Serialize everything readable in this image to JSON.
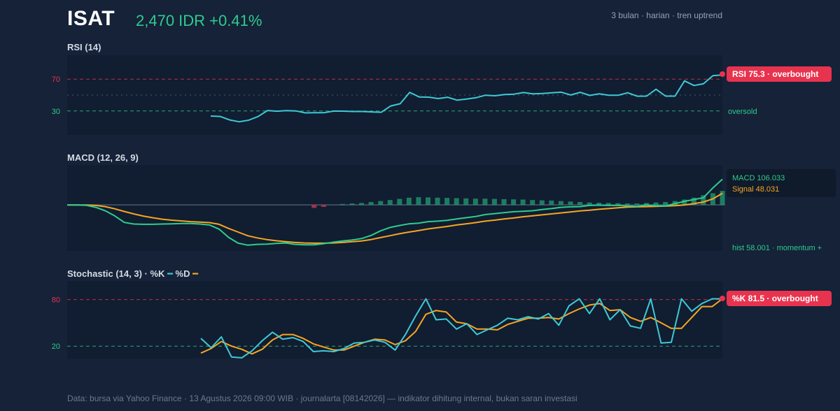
{
  "header": {
    "ticker": "ISAT",
    "price": "2,470 IDR +0.41%",
    "meta": "3 bulan · harian · tren uptrend"
  },
  "panels": {
    "rsi_title": "RSI (14)",
    "macd_title": "MACD (12, 26, 9)",
    "stoch_title": "Stochastic (14, 3) · %K",
    "stoch_d_label": "%D"
  },
  "labels": {
    "rsi_badge": "RSI 75.3 · overbought",
    "rsi_oversold": "oversold",
    "macd_value": "MACD 106.033",
    "signal_value": "Signal 48.031",
    "hist_note": "hist 58.001 · momentum +",
    "stoch_badge": "%K 81.5 · overbought"
  },
  "footer": "Data: bursa via Yahoo Finance · 13 Agustus 2026 09:00 WIB · journalarta [08142026] — indikator dihitung internal, bukan saran investasi",
  "colors": {
    "background": "#152238",
    "panel": "#111d30",
    "rsi_line": "#3ec9d6",
    "macd_line": "#2ecc8f",
    "signal_line": "#f5a623",
    "hist_positive": "#1f8f6a",
    "hist_negative": "#c0334d",
    "overbought": "#e8334f",
    "oversold": "#2ecc8f",
    "stoch_k": "#3ec9d6",
    "stoch_d": "#f5a623"
  },
  "chart_data": [
    {
      "type": "line",
      "name": "RSI (14)",
      "ylim": [
        0,
        100
      ],
      "yticks": [
        30,
        70
      ],
      "reference_lines": [
        70,
        50,
        30
      ],
      "series": [
        {
          "name": "RSI",
          "values": [
            23.7,
            23.2,
            18.8,
            16.5,
            18.4,
            23.1,
            30.6,
            29.7,
            30.4,
            30.1,
            27.6,
            27.8,
            27.9,
            29.9,
            29.8,
            29.4,
            29.4,
            28.9,
            28.4,
            36.3,
            39.1,
            53.4,
            47.6,
            47.4,
            45.6,
            47.3,
            43.6,
            45,
            46.7,
            49.8,
            49.1,
            50.6,
            51.1,
            53.2,
            51.5,
            52,
            52.8,
            53.6,
            50.1,
            53.4,
            49.6,
            51.6,
            49.8,
            49.7,
            52.9,
            48.6,
            48.7,
            57.3,
            48.7,
            48.7,
            67.8,
            62,
            64.1,
            74.4,
            75.3
          ]
        }
      ]
    },
    {
      "type": "line",
      "name": "MACD (12, 26, 9)",
      "series": [
        {
          "name": "MACD",
          "values": [
            0,
            0,
            -1.5,
            -10,
            -24,
            -45,
            -72,
            -79,
            -80,
            -80,
            -79,
            -78,
            -77,
            -77,
            -79,
            -83,
            -100,
            -134,
            -158,
            -166,
            -163,
            -162,
            -159,
            -157,
            -163,
            -165,
            -165,
            -160,
            -154,
            -149,
            -145,
            -139,
            -126,
            -107,
            -93,
            -85,
            -78,
            -75,
            -69,
            -67,
            -64,
            -58,
            -53,
            -48,
            -40,
            -36,
            -32,
            -28,
            -26,
            -24,
            -19,
            -15,
            -10,
            -8,
            -7,
            -2,
            -1,
            -2,
            -2,
            -4,
            -6,
            0,
            -3,
            -4,
            5,
            15,
            22,
            30,
            70,
            106
          ]
        },
        {
          "name": "Signal",
          "values": [
            0,
            0,
            0,
            -2,
            -7,
            -16,
            -27,
            -37,
            -46,
            -53,
            -59,
            -63,
            -66,
            -69,
            -71,
            -73,
            -80,
            -97,
            -112,
            -127,
            -136,
            -143,
            -148,
            -152,
            -155,
            -157,
            -158,
            -158,
            -157,
            -155,
            -152,
            -149,
            -143,
            -135,
            -127,
            -119,
            -112,
            -106,
            -99,
            -94,
            -89,
            -83,
            -78,
            -73,
            -67,
            -63,
            -58,
            -54,
            -49,
            -45,
            -41,
            -37,
            -33,
            -29,
            -25,
            -22,
            -18,
            -15,
            -12,
            -9,
            -8,
            -7,
            -6,
            -5,
            -3,
            0,
            5,
            12,
            25,
            48
          ]
        }
      ],
      "histogram": [
        {
          "index": 26,
          "value": -12
        },
        {
          "index": 27,
          "value": -8
        },
        {
          "index": 29,
          "value": 4
        },
        {
          "index": 30,
          "value": 6
        },
        {
          "index": 31,
          "value": 8
        },
        {
          "index": 32,
          "value": 12
        },
        {
          "index": 33,
          "value": 16
        },
        {
          "index": 34,
          "value": 20
        },
        {
          "index": 35,
          "value": 25
        },
        {
          "index": 36,
          "value": 30
        },
        {
          "index": 37,
          "value": 32
        },
        {
          "index": 38,
          "value": 31
        },
        {
          "index": 39,
          "value": 30
        },
        {
          "index": 40,
          "value": 29
        },
        {
          "index": 41,
          "value": 28
        },
        {
          "index": 42,
          "value": 27
        },
        {
          "index": 43,
          "value": 26
        },
        {
          "index": 44,
          "value": 26
        },
        {
          "index": 45,
          "value": 25
        },
        {
          "index": 46,
          "value": 24
        },
        {
          "index": 47,
          "value": 23
        },
        {
          "index": 48,
          "value": 22
        },
        {
          "index": 49,
          "value": 20
        },
        {
          "index": 50,
          "value": 19
        },
        {
          "index": 51,
          "value": 18
        },
        {
          "index": 52,
          "value": 16
        },
        {
          "index": 53,
          "value": 14
        },
        {
          "index": 54,
          "value": 12
        },
        {
          "index": 55,
          "value": 10
        },
        {
          "index": 56,
          "value": 9
        },
        {
          "index": 57,
          "value": 8
        },
        {
          "index": 58,
          "value": 7
        },
        {
          "index": 59,
          "value": 6
        },
        {
          "index": 60,
          "value": 6
        },
        {
          "index": 61,
          "value": 8
        },
        {
          "index": 62,
          "value": 10
        },
        {
          "index": 63,
          "value": 12
        },
        {
          "index": 64,
          "value": 16
        },
        {
          "index": 65,
          "value": 22
        },
        {
          "index": 66,
          "value": 30
        },
        {
          "index": 67,
          "value": 40
        },
        {
          "index": 68,
          "value": 48
        },
        {
          "index": 69,
          "value": 58
        }
      ],
      "ylim": [
        -190,
        165
      ]
    },
    {
      "type": "line",
      "name": "Stochastic (14, 3)",
      "ylim": [
        0,
        100
      ],
      "yticks": [
        20,
        80
      ],
      "reference_lines": [
        80,
        20
      ],
      "series": [
        {
          "name": "%K",
          "values": [
            30,
            18,
            32,
            6,
            5,
            14,
            27,
            38,
            29,
            31,
            26,
            13,
            14,
            13,
            17,
            24,
            25,
            28,
            25,
            15,
            35,
            59,
            81,
            54,
            55,
            42,
            49,
            35,
            41,
            47,
            56,
            54,
            58,
            55,
            62,
            47,
            72,
            81,
            62,
            81,
            54,
            67,
            46,
            43,
            81,
            24,
            25,
            81,
            65,
            75,
            81,
            81
          ]
        },
        {
          "name": "%D",
          "values": [
            11,
            17,
            26,
            20,
            16,
            10,
            16,
            28,
            35,
            35,
            30,
            23,
            19,
            15,
            15,
            20,
            25,
            29,
            28,
            22,
            27,
            39,
            61,
            66,
            64,
            51,
            49,
            42,
            42,
            41,
            48,
            52,
            56,
            56,
            57,
            55,
            62,
            68,
            73,
            75,
            66,
            67,
            57,
            52,
            57,
            50,
            43,
            43,
            57,
            71,
            71,
            81
          ]
        }
      ]
    }
  ]
}
